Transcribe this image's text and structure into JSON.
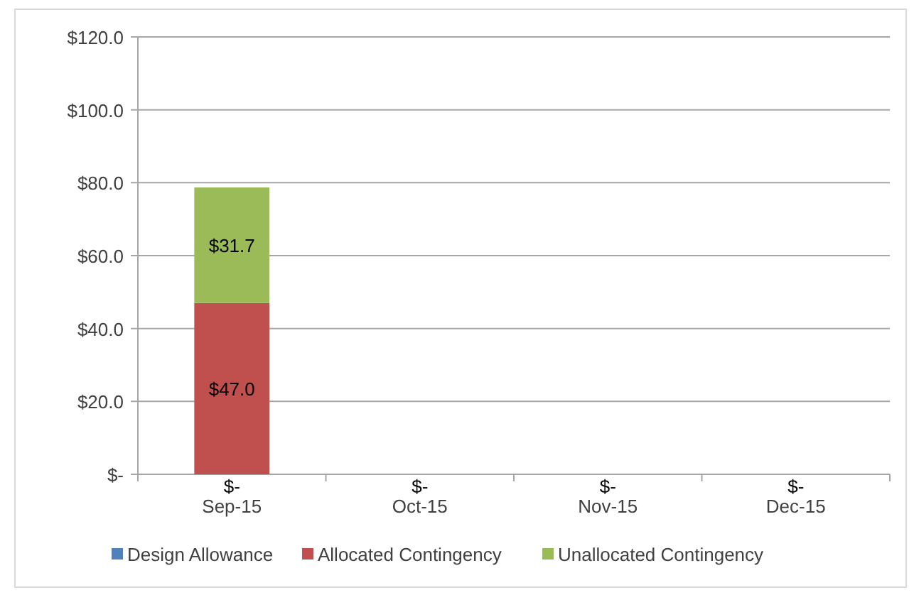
{
  "chart_data": {
    "type": "bar",
    "stacked": true,
    "categories": [
      "Sep-15",
      "Oct-15",
      "Nov-15",
      "Dec-15"
    ],
    "series": [
      {
        "name": "Design Allowance",
        "color": "#4f81bd",
        "values": [
          0,
          0,
          0,
          0
        ],
        "value_labels": [
          "$-",
          "$-",
          "$-",
          "$-"
        ]
      },
      {
        "name": "Allocated Contingency",
        "color": "#c0504d",
        "values": [
          47.0,
          null,
          null,
          null
        ],
        "value_labels": [
          "$47.0",
          null,
          null,
          null
        ]
      },
      {
        "name": "Unallocated Contingency",
        "color": "#9bbb59",
        "values": [
          31.7,
          null,
          null,
          null
        ],
        "value_labels": [
          "$31.7",
          null,
          null,
          null
        ]
      }
    ],
    "ylim": [
      0,
      120
    ],
    "yticks": [
      {
        "value": 0,
        "label": "$-"
      },
      {
        "value": 20,
        "label": "$20.0"
      },
      {
        "value": 40,
        "label": "$40.0"
      },
      {
        "value": 60,
        "label": "$60.0"
      },
      {
        "value": 80,
        "label": "$80.0"
      },
      {
        "value": 100,
        "label": "$100.0"
      },
      {
        "value": 120,
        "label": "$120.0"
      }
    ],
    "grid": "y",
    "legend": "bottom"
  }
}
